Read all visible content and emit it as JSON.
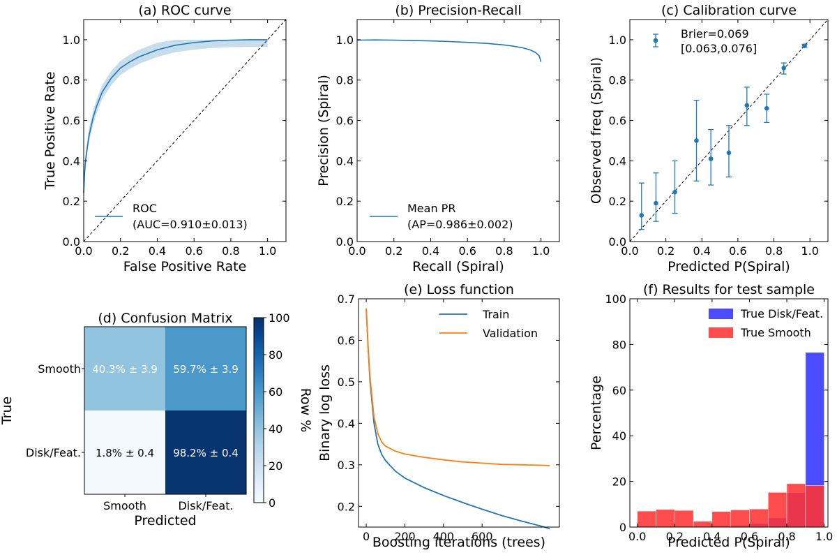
{
  "colors": {
    "blue": "#1f77b4",
    "orange": "#ff7f0e",
    "hist_blue": "#3333ff",
    "hist_red": "#ff3333"
  },
  "chart_data": [
    {
      "id": "a",
      "type": "line",
      "title": "(a) ROC curve",
      "xlabel": "False Positive Rate",
      "ylabel": "True Positive Rate",
      "xlim": [
        0,
        1.1
      ],
      "ylim": [
        0,
        1.1
      ],
      "xticks": [
        "0.0",
        "0.2",
        "0.4",
        "0.6",
        "0.8",
        "1.0"
      ],
      "yticks": [
        "0.0",
        "0.2",
        "0.4",
        "0.6",
        "0.8",
        "1.0"
      ],
      "legend": {
        "position": "lower-right",
        "lines": [
          "ROC",
          "(AUC=0.910±0.013)"
        ]
      },
      "series": [
        {
          "x": [
            0,
            0.005,
            0.01,
            0.02,
            0.03,
            0.05,
            0.07,
            0.1,
            0.15,
            0.2,
            0.25,
            0.3,
            0.4,
            0.5,
            0.6,
            0.7,
            0.8,
            0.9,
            1.0
          ],
          "y": [
            0.24,
            0.34,
            0.4,
            0.47,
            0.53,
            0.61,
            0.67,
            0.74,
            0.81,
            0.86,
            0.89,
            0.915,
            0.95,
            0.973,
            0.986,
            0.994,
            0.998,
            1.0,
            1.0
          ],
          "band": 0.035
        }
      ],
      "diagonal": true
    },
    {
      "id": "b",
      "type": "line",
      "title": "(b) Precision-Recall",
      "xlabel": "Recall (Spiral)",
      "ylabel": "Precision (Spiral)",
      "xlim": [
        0,
        1.1
      ],
      "ylim": [
        0,
        1.1
      ],
      "xticks": [
        "0.0",
        "0.2",
        "0.4",
        "0.6",
        "0.8",
        "1.0"
      ],
      "yticks": [
        "0.0",
        "0.2",
        "0.4",
        "0.6",
        "0.8",
        "1.0"
      ],
      "legend": {
        "position": "lower-right",
        "lines": [
          "Mean PR",
          "(AP=0.986±0.002)"
        ]
      },
      "series": [
        {
          "x": [
            0,
            0.1,
            0.2,
            0.3,
            0.4,
            0.5,
            0.6,
            0.7,
            0.8,
            0.85,
            0.9,
            0.94,
            0.97,
            0.99,
            1.0
          ],
          "y": [
            0.998,
            0.999,
            0.998,
            0.996,
            0.994,
            0.991,
            0.987,
            0.982,
            0.974,
            0.968,
            0.96,
            0.95,
            0.937,
            0.92,
            0.89
          ]
        }
      ]
    },
    {
      "id": "c",
      "type": "scatter",
      "title": "(c) Calibration curve",
      "xlabel": "Predicted P(Spiral)",
      "ylabel": "Observed freq (Spiral)",
      "xlim": [
        0,
        1.1
      ],
      "ylim": [
        0,
        1.1
      ],
      "xticks": [
        "0.0",
        "0.2",
        "0.4",
        "0.6",
        "0.8",
        "1.0"
      ],
      "yticks": [
        "0.0",
        "0.2",
        "0.4",
        "0.6",
        "0.8",
        "1.0"
      ],
      "legend": {
        "position": "top-left",
        "lines": [
          "Brier=0.069",
          "[0.063,0.076]"
        ]
      },
      "points": [
        {
          "x": 0.065,
          "y": 0.13,
          "lo": 0.06,
          "hi": 0.29
        },
        {
          "x": 0.145,
          "y": 0.19,
          "lo": 0.1,
          "hi": 0.34
        },
        {
          "x": 0.25,
          "y": 0.245,
          "lo": 0.14,
          "hi": 0.4
        },
        {
          "x": 0.37,
          "y": 0.5,
          "lo": 0.3,
          "hi": 0.7
        },
        {
          "x": 0.45,
          "y": 0.41,
          "lo": 0.28,
          "hi": 0.555
        },
        {
          "x": 0.55,
          "y": 0.44,
          "lo": 0.32,
          "hi": 0.575
        },
        {
          "x": 0.65,
          "y": 0.675,
          "lo": 0.575,
          "hi": 0.765
        },
        {
          "x": 0.76,
          "y": 0.66,
          "lo": 0.59,
          "hi": 0.73
        },
        {
          "x": 0.855,
          "y": 0.86,
          "lo": 0.83,
          "hi": 0.885
        },
        {
          "x": 0.97,
          "y": 0.97,
          "lo": 0.963,
          "hi": 0.977
        }
      ],
      "diagonal": true
    },
    {
      "id": "d",
      "type": "heatmap",
      "title": "(d) Confusion Matrix",
      "xlabel": "Predicted",
      "ylabel": "True",
      "xcats": [
        "Smooth",
        "Disk/Feat."
      ],
      "ycats": [
        "Smooth",
        "Disk/Feat."
      ],
      "values": [
        [
          40.3,
          59.7
        ],
        [
          1.8,
          98.2
        ]
      ],
      "labels": [
        [
          "40.3% ± 3.9",
          "59.7% ± 3.9"
        ],
        [
          "1.8% ± 0.4",
          "98.2% ± 0.4"
        ]
      ],
      "colorbar": {
        "label": "Row %",
        "range": [
          0,
          100
        ],
        "ticks": [
          "0",
          "20",
          "40",
          "60",
          "80",
          "100"
        ]
      }
    },
    {
      "id": "e",
      "type": "line",
      "title": "(e) Loss function",
      "xlabel": "Boosting iterations (trees)",
      "ylabel": "Binary log loss",
      "xlim": [
        -40,
        1000
      ],
      "ylim": [
        0.15,
        0.7
      ],
      "xticks": [
        "0",
        "200",
        "400",
        "600"
      ],
      "yticks": [
        "0.2",
        "0.3",
        "0.4",
        "0.5",
        "0.6",
        "0.7"
      ],
      "legend": {
        "position": "top-right",
        "lines": [
          "Train",
          "Validation"
        ]
      },
      "series": [
        {
          "name": "Train",
          "x": [
            0,
            10,
            20,
            40,
            60,
            80,
            100,
            150,
            200,
            300,
            400,
            500,
            600,
            700,
            800,
            900,
            950
          ],
          "y": [
            0.675,
            0.58,
            0.5,
            0.4,
            0.35,
            0.325,
            0.31,
            0.285,
            0.268,
            0.245,
            0.226,
            0.209,
            0.193,
            0.178,
            0.165,
            0.153,
            0.146
          ]
        },
        {
          "name": "Validation",
          "x": [
            0,
            10,
            20,
            40,
            60,
            80,
            100,
            150,
            200,
            300,
            400,
            500,
            600,
            700,
            800,
            900,
            950
          ],
          "y": [
            0.677,
            0.585,
            0.51,
            0.415,
            0.375,
            0.355,
            0.345,
            0.333,
            0.326,
            0.318,
            0.312,
            0.307,
            0.304,
            0.301,
            0.3,
            0.299,
            0.298
          ]
        }
      ]
    },
    {
      "id": "f",
      "type": "bar",
      "title": "(f) Results for test sample",
      "xlabel": "Predicted P(Spiral)",
      "ylabel": "Percentage",
      "xlim": [
        -0.04,
        1.02
      ],
      "ylim": [
        0,
        100
      ],
      "xticks": [
        "0.0",
        "0.2",
        "0.4",
        "0.6",
        "0.8",
        "1.0"
      ],
      "yticks": [
        "0",
        "20",
        "40",
        "60",
        "80",
        "100"
      ],
      "bin_edges": [
        0.0,
        0.1,
        0.2,
        0.3,
        0.4,
        0.5,
        0.6,
        0.7,
        0.8,
        0.9,
        1.0
      ],
      "series": [
        {
          "name": "True Disk/Feat.",
          "values": [
            0.3,
            0.3,
            0.3,
            0.3,
            0.5,
            0.8,
            1.5,
            4,
            15,
            76.5
          ]
        },
        {
          "name": "True Smooth",
          "values": [
            7,
            7.7,
            7.3,
            2.5,
            6.8,
            7.5,
            7.9,
            15.2,
            19,
            18.2
          ]
        }
      ],
      "legend": {
        "position": "top-right",
        "lines": [
          "True Disk/Feat.",
          "True Smooth"
        ]
      }
    }
  ]
}
